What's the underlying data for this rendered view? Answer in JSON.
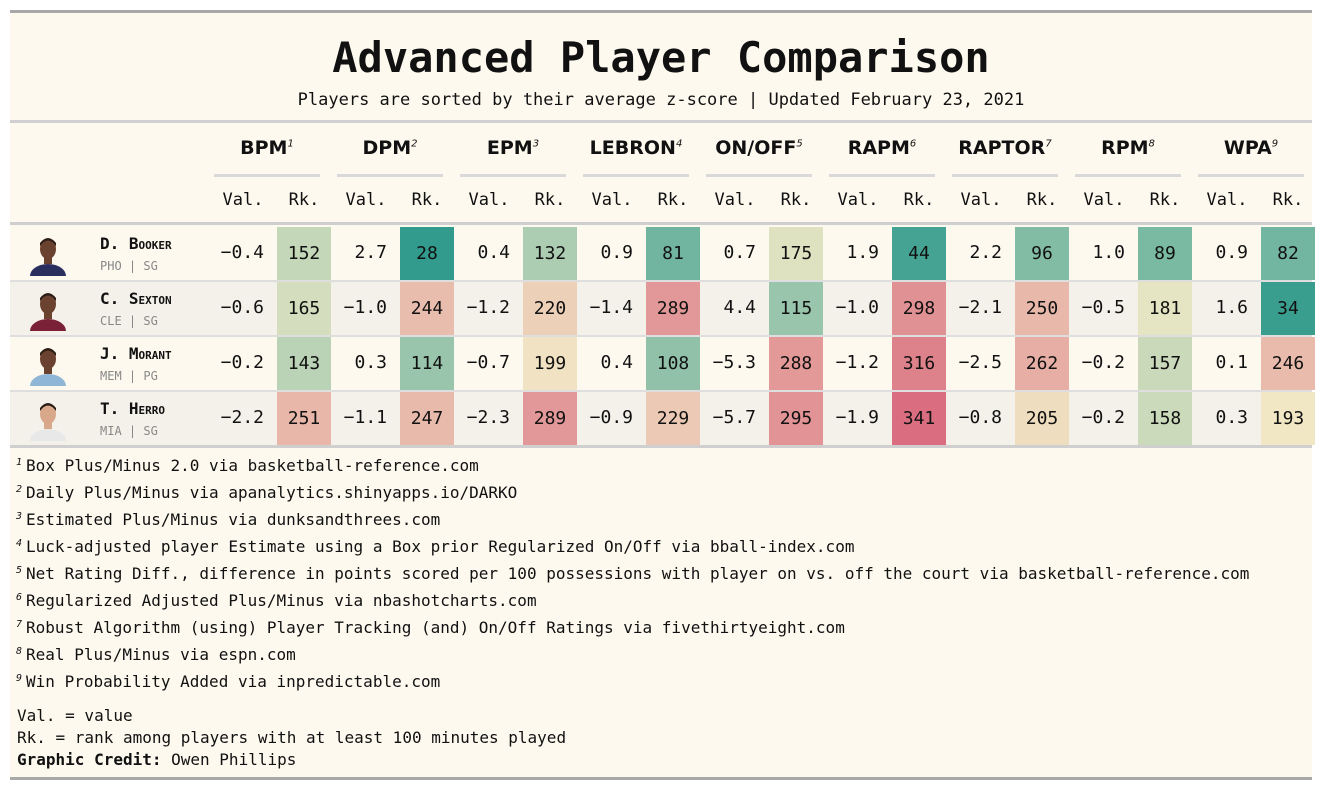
{
  "title": "Advanced Player Comparison",
  "subtitle": "Players are sorted by their average z-score | Updated February 23, 2021",
  "chart_data": {
    "type": "table",
    "metrics": [
      {
        "name": "BPM",
        "note": "1"
      },
      {
        "name": "DPM",
        "note": "2"
      },
      {
        "name": "EPM",
        "note": "3"
      },
      {
        "name": "LEBRON",
        "note": "4"
      },
      {
        "name": "ON/OFF",
        "note": "5"
      },
      {
        "name": "RAPM",
        "note": "6"
      },
      {
        "name": "RAPTOR",
        "note": "7"
      },
      {
        "name": "RPM",
        "note": "8"
      },
      {
        "name": "WPA",
        "note": "9"
      }
    ],
    "subheaders": {
      "val": "Val.",
      "rk": "Rk."
    },
    "players": [
      {
        "name": "D. Booker",
        "info": "PHO | SG",
        "values": [
          "−0.4",
          "2.7",
          "0.4",
          "0.9",
          "0.7",
          "1.9",
          "2.2",
          "1.0",
          "0.9"
        ],
        "ranks": [
          152,
          28,
          132,
          81,
          175,
          44,
          96,
          89,
          82
        ]
      },
      {
        "name": "C. Sexton",
        "info": "CLE | SG",
        "values": [
          "−0.6",
          "−1.0",
          "−1.2",
          "−1.4",
          "4.4",
          "−1.0",
          "−2.1",
          "−0.5",
          "1.6"
        ],
        "ranks": [
          165,
          244,
          220,
          289,
          115,
          298,
          250,
          181,
          34
        ]
      },
      {
        "name": "J. Morant",
        "info": "MEM | PG",
        "values": [
          "−0.2",
          "0.3",
          "−0.7",
          "0.4",
          "−5.3",
          "−1.2",
          "−2.5",
          "−0.2",
          "0.1"
        ],
        "ranks": [
          143,
          114,
          199,
          108,
          288,
          316,
          262,
          157,
          246
        ]
      },
      {
        "name": "T. Herro",
        "info": "MIA | SG",
        "values": [
          "−2.2",
          "−1.1",
          "−2.3",
          "−0.9",
          "−5.7",
          "−1.9",
          "−0.8",
          "−0.2",
          "0.3"
        ],
        "ranks": [
          251,
          247,
          289,
          229,
          295,
          341,
          205,
          158,
          193
        ]
      }
    ]
  },
  "footnotes": [
    {
      "n": "1",
      "text": "Box Plus/Minus 2.0 via basketball-reference.com"
    },
    {
      "n": "2",
      "text": "Daily Plus/Minus via apanalytics.shinyapps.io/DARKO"
    },
    {
      "n": "3",
      "text": "Estimated Plus/Minus via dunksandthrees.com"
    },
    {
      "n": "4",
      "text": "Luck-adjusted player Estimate using a Box prior Regularized On/Off via bball-index.com"
    },
    {
      "n": "5",
      "text": "Net Rating Diff., difference in points scored per 100 possessions with player on vs. off the court via basketball-reference.com"
    },
    {
      "n": "6",
      "text": "Regularized Adjusted Plus/Minus via nbashotcharts.com"
    },
    {
      "n": "7",
      "text": "Robust Algorithm (using) Player Tracking (and) On/Off Ratings via fivethirtyeight.com"
    },
    {
      "n": "8",
      "text": "Real Plus/Minus via espn.com"
    },
    {
      "n": "9",
      "text": "Win Probability Added via inpredictable.com"
    }
  ],
  "legend": {
    "val": "Val. = value",
    "rk": "Rk. = rank among players with at least 100 minutes played",
    "credit_label": "Graphic Credit:",
    "credit_name": " Owen Phillips"
  },
  "colors": {
    "background": "#fdf9ef",
    "rank_best": "#2f9a8c",
    "rank_mid": "#f1e9c6",
    "rank_worst": "#d96a7e"
  }
}
